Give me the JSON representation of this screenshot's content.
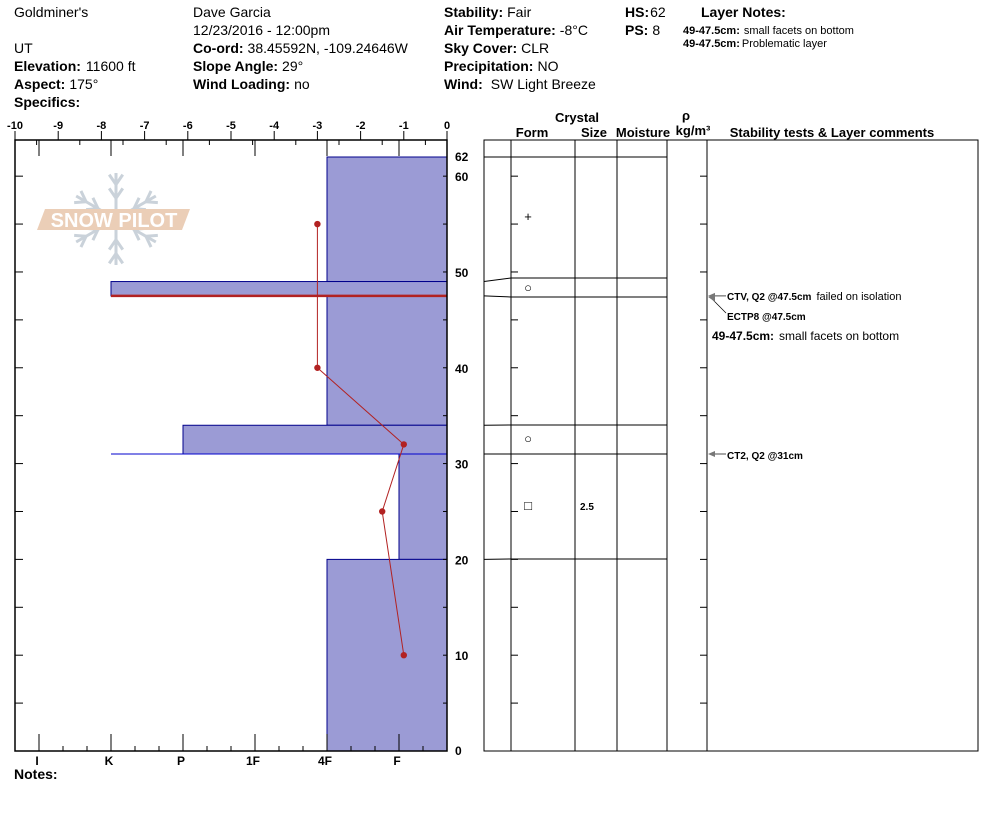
{
  "header": {
    "location": "Goldminer's",
    "state": "UT",
    "elevation_label": "Elevation:",
    "elevation": "11600 ft",
    "aspect_label": "Aspect:",
    "aspect": "175°",
    "specifics_label": "Specifics:",
    "observer": "Dave Garcia",
    "datetime": "12/23/2016 - 12:00pm",
    "coord_label": "Co-ord:",
    "coord": "38.45592N, -109.24646W",
    "slope_label": "Slope Angle:",
    "slope": "29°",
    "wind_loading_label": "Wind Loading:",
    "wind_loading": "no",
    "stability_label": "Stability:",
    "stability": "Fair",
    "air_temp_label": "Air Temperature:",
    "air_temp": "-8°C",
    "sky_label": "Sky Cover:",
    "sky": "CLR",
    "precip_label": "Precipitation:",
    "precip": "NO",
    "wind_label": "Wind:",
    "wind": "SW Light Breeze",
    "hs_label": "HS:",
    "hs": "62",
    "ps_label": "PS:",
    "ps": "8",
    "layer_notes_title": "Layer Notes:",
    "layer_notes": [
      {
        "range": "49-47.5cm:",
        "text": "small facets on bottom"
      },
      {
        "range": "49-47.5cm:",
        "text": "Problematic layer"
      }
    ]
  },
  "notes_label": "Notes:",
  "logo": {
    "text": "SNOW PILOT",
    "color": "#e9c9b0",
    "flake_color": "#c5ced6"
  },
  "columns": {
    "crystal": "Crystal",
    "form": "Form",
    "size": "Size",
    "moisture": "Moisture",
    "rho": "ρ",
    "density_unit": "kg/m³",
    "comments": "Stability tests & Layer comments"
  },
  "chart_data": {
    "type": "snow-profile",
    "temperature_axis": {
      "range": [
        -10,
        0
      ],
      "ticks": [
        "-10",
        "-9",
        "-8",
        "-7",
        "-6",
        "-5",
        "-4",
        "-3",
        "-2",
        "-1",
        "0"
      ]
    },
    "hardness_axis": {
      "ticks": [
        "I",
        "K",
        "P",
        "1F",
        "4F",
        "F"
      ]
    },
    "depth_axis": {
      "range": [
        0,
        62
      ],
      "ticks": [
        "62",
        "60",
        "50",
        "40",
        "30",
        "20",
        "10",
        "0"
      ]
    },
    "colors": {
      "hardness_fill": "#9b9bd5",
      "hardness_stroke": "#00008b",
      "temperature": "#b22222",
      "failure_red": "#b22222",
      "failure_blue": "#0000cd"
    },
    "layers": [
      {
        "top": 62,
        "bottom": 49,
        "hardness": "4F",
        "form": "+",
        "size": ""
      },
      {
        "top": 49,
        "bottom": 47.5,
        "hardness": "K",
        "form": "○",
        "size": ""
      },
      {
        "top": 47.5,
        "bottom": 34,
        "hardness": "4F",
        "form": "",
        "size": ""
      },
      {
        "top": 34,
        "bottom": 31,
        "hardness": "P",
        "form": "○",
        "size": ""
      },
      {
        "top": 31,
        "bottom": 20,
        "hardness": "F",
        "form": "□",
        "size": "2.5"
      },
      {
        "top": 20,
        "bottom": 0,
        "hardness": "4F",
        "form": "",
        "size": ""
      }
    ],
    "temperature_profile": [
      {
        "depth": 55,
        "temp": -3
      },
      {
        "depth": 40,
        "temp": -3
      },
      {
        "depth": 32,
        "temp": -1
      },
      {
        "depth": 25,
        "temp": -1.5
      },
      {
        "depth": 10,
        "temp": -1
      }
    ],
    "failure_lines": [
      {
        "depth": 47.5,
        "color": "red"
      },
      {
        "depth": 31,
        "color": "blue"
      }
    ],
    "stability_tests": [
      {
        "depth": 47.5,
        "label": "CTV, Q2 @47.5cm",
        "comment": "failed on isolation"
      },
      {
        "depth": 47.5,
        "label": "ECTP8 @47.5cm",
        "comment": ""
      },
      {
        "depth": 31,
        "label": "CT2, Q2 @31cm",
        "comment": ""
      }
    ],
    "layer_comments": [
      {
        "range": "49-47.5cm:",
        "text": "small facets on bottom"
      }
    ]
  }
}
